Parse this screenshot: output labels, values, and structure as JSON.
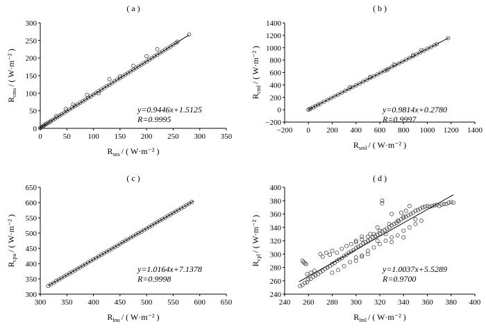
{
  "chart_data": [
    {
      "type": "scatter",
      "title": "( a )",
      "xlabel": {
        "main": "R",
        "sub": "sns",
        "unit": "/ ( W·m⁻² )"
      },
      "ylabel": {
        "main": "R",
        "sub": "cms",
        "unit": "/ ( W·m⁻² )"
      },
      "xlim": [
        0,
        350
      ],
      "ylim": [
        0,
        300
      ],
      "xticks": [
        "0",
        "50",
        "100",
        "150",
        "200",
        "250",
        "300",
        "350"
      ],
      "yticks": [
        "0",
        "50",
        "100",
        "150",
        "200",
        "250",
        "300"
      ],
      "equation": "y=0.9446x+1.5125",
      "r_text": "R=0.9995",
      "fit": {
        "slope": 0.9446,
        "intercept": 1.5125,
        "x_range": [
          0,
          280
        ]
      },
      "points": [
        [
          0,
          1
        ],
        [
          2,
          3
        ],
        [
          4,
          5
        ],
        [
          6,
          7
        ],
        [
          8,
          9
        ],
        [
          10,
          12
        ],
        [
          12,
          13
        ],
        [
          15,
          16
        ],
        [
          18,
          18
        ],
        [
          20,
          21
        ],
        [
          24,
          24
        ],
        [
          28,
          28
        ],
        [
          32,
          32
        ],
        [
          36,
          36
        ],
        [
          40,
          40
        ],
        [
          45,
          44
        ],
        [
          50,
          49
        ],
        [
          55,
          54
        ],
        [
          60,
          59
        ],
        [
          65,
          63
        ],
        [
          70,
          68
        ],
        [
          75,
          73
        ],
        [
          80,
          77
        ],
        [
          85,
          82
        ],
        [
          90,
          87
        ],
        [
          95,
          91
        ],
        [
          100,
          96
        ],
        [
          105,
          101
        ],
        [
          110,
          106
        ],
        [
          115,
          110
        ],
        [
          120,
          115
        ],
        [
          125,
          120
        ],
        [
          130,
          124
        ],
        [
          135,
          129
        ],
        [
          140,
          134
        ],
        [
          145,
          139
        ],
        [
          150,
          143
        ],
        [
          155,
          148
        ],
        [
          160,
          153
        ],
        [
          165,
          157
        ],
        [
          170,
          162
        ],
        [
          175,
          167
        ],
        [
          180,
          172
        ],
        [
          185,
          176
        ],
        [
          190,
          181
        ],
        [
          195,
          186
        ],
        [
          200,
          190
        ],
        [
          205,
          195
        ],
        [
          210,
          200
        ],
        [
          215,
          205
        ],
        [
          220,
          209
        ],
        [
          225,
          214
        ],
        [
          230,
          219
        ],
        [
          235,
          224
        ],
        [
          240,
          228
        ],
        [
          245,
          233
        ],
        [
          250,
          238
        ],
        [
          255,
          243
        ],
        [
          258,
          246
        ],
        [
          280,
          267
        ],
        [
          30,
          35
        ],
        [
          48,
          55
        ],
        [
          62,
          68
        ],
        [
          88,
          95
        ],
        [
          110,
          100
        ],
        [
          130,
          140
        ],
        [
          150,
          148
        ],
        [
          175,
          178
        ],
        [
          200,
          205
        ],
        [
          220,
          225
        ]
      ]
    },
    {
      "type": "scatter",
      "title": "( b )",
      "xlabel": {
        "main": "R",
        "sub": "sml",
        "unit": "/ ( W·m⁻² )"
      },
      "ylabel": {
        "main": "R",
        "sub": "cml",
        "unit": "/ ( W·m⁻² )"
      },
      "xlim": [
        -200,
        1400
      ],
      "ylim": [
        -200,
        1400
      ],
      "xticks": [
        "−200",
        "0",
        "200",
        "400",
        "600",
        "800",
        "1000",
        "1200",
        "1400"
      ],
      "yticks": [
        "−200",
        "0",
        "200",
        "400",
        "600",
        "800",
        "1000",
        "1200",
        "1400"
      ],
      "equation": "y=0.9814x+0.2780",
      "r_text": "R=0.9997",
      "fit": {
        "slope": 0.9814,
        "intercept": 0.278,
        "x_range": [
          0,
          1180
        ]
      },
      "points": [
        [
          0,
          0
        ],
        [
          10,
          10
        ],
        [
          20,
          19
        ],
        [
          40,
          39
        ],
        [
          60,
          59
        ],
        [
          80,
          79
        ],
        [
          100,
          98
        ],
        [
          130,
          128
        ],
        [
          160,
          157
        ],
        [
          190,
          187
        ],
        [
          220,
          216
        ],
        [
          250,
          246
        ],
        [
          280,
          275
        ],
        [
          310,
          305
        ],
        [
          340,
          334
        ],
        [
          370,
          364
        ],
        [
          400,
          393
        ],
        [
          430,
          422
        ],
        [
          460,
          452
        ],
        [
          490,
          481
        ],
        [
          520,
          511
        ],
        [
          550,
          540
        ],
        [
          580,
          570
        ],
        [
          610,
          599
        ],
        [
          640,
          628
        ],
        [
          670,
          658
        ],
        [
          700,
          687
        ],
        [
          730,
          717
        ],
        [
          760,
          746
        ],
        [
          790,
          776
        ],
        [
          820,
          805
        ],
        [
          850,
          835
        ],
        [
          880,
          864
        ],
        [
          910,
          893
        ],
        [
          940,
          923
        ],
        [
          970,
          952
        ],
        [
          1000,
          982
        ],
        [
          1030,
          1011
        ],
        [
          1060,
          1040
        ],
        [
          1080,
          1060
        ],
        [
          1175,
          1155
        ],
        [
          350,
          360
        ],
        [
          520,
          530
        ],
        [
          660,
          640
        ],
        [
          720,
          730
        ],
        [
          880,
          880
        ],
        [
          950,
          960
        ]
      ]
    },
    {
      "type": "scatter",
      "title": "( c )",
      "xlabel": {
        "main": "R",
        "sub": "lnu",
        "unit": "/ ( W·m⁻² )"
      },
      "ylabel": {
        "main": "R",
        "sub": "cpu",
        "unit": "/ ( W·m⁻² )"
      },
      "xlim": [
        300,
        650
      ],
      "ylim": [
        300,
        650
      ],
      "xticks": [
        "300",
        "350",
        "400",
        "450",
        "500",
        "550",
        "600",
        "650"
      ],
      "yticks": [
        "300",
        "350",
        "400",
        "450",
        "500",
        "550",
        "600",
        "650"
      ],
      "equation": "y=1.0164x+7.1378",
      "r_text": "R=0.9998",
      "fit": {
        "slope": 1.0164,
        "intercept": 7.1378,
        "x_range": [
          315,
          588
        ]
      },
      "points": [
        [
          315,
          327
        ],
        [
          320,
          332
        ],
        [
          325,
          337
        ],
        [
          330,
          343
        ],
        [
          335,
          348
        ],
        [
          340,
          353
        ],
        [
          345,
          358
        ],
        [
          350,
          363
        ],
        [
          355,
          368
        ],
        [
          360,
          373
        ],
        [
          365,
          378
        ],
        [
          370,
          383
        ],
        [
          375,
          388
        ],
        [
          380,
          393
        ],
        [
          385,
          398
        ],
        [
          390,
          404
        ],
        [
          395,
          409
        ],
        [
          400,
          414
        ],
        [
          405,
          419
        ],
        [
          410,
          424
        ],
        [
          415,
          429
        ],
        [
          420,
          434
        ],
        [
          425,
          439
        ],
        [
          430,
          444
        ],
        [
          435,
          449
        ],
        [
          440,
          454
        ],
        [
          445,
          459
        ],
        [
          450,
          465
        ],
        [
          455,
          470
        ],
        [
          460,
          475
        ],
        [
          465,
          480
        ],
        [
          470,
          485
        ],
        [
          475,
          490
        ],
        [
          480,
          495
        ],
        [
          485,
          500
        ],
        [
          490,
          505
        ],
        [
          495,
          510
        ],
        [
          500,
          515
        ],
        [
          505,
          520
        ],
        [
          510,
          525
        ],
        [
          515,
          531
        ],
        [
          520,
          536
        ],
        [
          525,
          541
        ],
        [
          530,
          546
        ],
        [
          535,
          551
        ],
        [
          540,
          556
        ],
        [
          545,
          561
        ],
        [
          550,
          566
        ],
        [
          555,
          571
        ],
        [
          560,
          576
        ],
        [
          565,
          581
        ],
        [
          570,
          586
        ],
        [
          575,
          592
        ],
        [
          580,
          597
        ],
        [
          585,
          602
        ]
      ]
    },
    {
      "type": "scatter",
      "title": "( d )",
      "xlabel": {
        "main": "R",
        "sub": "lml",
        "unit": "/ ( W·m⁻² )"
      },
      "ylabel": {
        "main": "R",
        "sub": "cpl",
        "unit": "/ ( W·m⁻² )"
      },
      "xlim": [
        240,
        400
      ],
      "ylim": [
        240,
        400
      ],
      "xticks": [
        "240",
        "260",
        "280",
        "300",
        "320",
        "340",
        "360",
        "380",
        "400"
      ],
      "yticks": [
        "240",
        "260",
        "280",
        "300",
        "320",
        "340",
        "360",
        "380",
        "400"
      ],
      "equation": "y=1.0037x+5.5289",
      "r_text": "R=0.9700",
      "fit": {
        "slope": 1.0037,
        "intercept": 5.5289,
        "x_range": [
          252,
          382
        ]
      },
      "points": [
        [
          253,
          252
        ],
        [
          255,
          254
        ],
        [
          257,
          257
        ],
        [
          259,
          258
        ],
        [
          260,
          262
        ],
        [
          262,
          263
        ],
        [
          264,
          266
        ],
        [
          266,
          268
        ],
        [
          268,
          270
        ],
        [
          270,
          273
        ],
        [
          272,
          275
        ],
        [
          274,
          278
        ],
        [
          276,
          280
        ],
        [
          278,
          282
        ],
        [
          280,
          285
        ],
        [
          282,
          287
        ],
        [
          284,
          290
        ],
        [
          286,
          292
        ],
        [
          288,
          294
        ],
        [
          290,
          297
        ],
        [
          292,
          299
        ],
        [
          294,
          302
        ],
        [
          296,
          304
        ],
        [
          298,
          306
        ],
        [
          300,
          309
        ],
        [
          302,
          311
        ],
        [
          304,
          313
        ],
        [
          306,
          316
        ],
        [
          308,
          318
        ],
        [
          310,
          320
        ],
        [
          312,
          322
        ],
        [
          314,
          325
        ],
        [
          316,
          327
        ],
        [
          318,
          329
        ],
        [
          320,
          331
        ],
        [
          322,
          334
        ],
        [
          324,
          336
        ],
        [
          326,
          338
        ],
        [
          328,
          340
        ],
        [
          330,
          343
        ],
        [
          332,
          345
        ],
        [
          334,
          347
        ],
        [
          336,
          349
        ],
        [
          338,
          352
        ],
        [
          340,
          354
        ],
        [
          342,
          356
        ],
        [
          344,
          358
        ],
        [
          346,
          360
        ],
        [
          348,
          362
        ],
        [
          350,
          365
        ],
        [
          352,
          366
        ],
        [
          354,
          368
        ],
        [
          356,
          370
        ],
        [
          358,
          371
        ],
        [
          360,
          372
        ],
        [
          362,
          371
        ],
        [
          364,
          372
        ],
        [
          366,
          373
        ],
        [
          368,
          374
        ],
        [
          370,
          372
        ],
        [
          372,
          374
        ],
        [
          374,
          375
        ],
        [
          376,
          375
        ],
        [
          378,
          377
        ],
        [
          380,
          378
        ],
        [
          382,
          377
        ],
        [
          255,
          290
        ],
        [
          256,
          288
        ],
        [
          257,
          286
        ],
        [
          258,
          285
        ],
        [
          259,
          270
        ],
        [
          262,
          272
        ],
        [
          265,
          275
        ],
        [
          270,
          300
        ],
        [
          272,
          296
        ],
        [
          275,
          302
        ],
        [
          278,
          299
        ],
        [
          280,
          305
        ],
        [
          284,
          302
        ],
        [
          288,
          308
        ],
        [
          292,
          312
        ],
        [
          296,
          315
        ],
        [
          300,
          318
        ],
        [
          305,
          322
        ],
        [
          310,
          326
        ],
        [
          315,
          330
        ],
        [
          320,
          335
        ],
        [
          322,
          380
        ],
        [
          322,
          376
        ],
        [
          330,
          360
        ],
        [
          335,
          350
        ],
        [
          340,
          356
        ],
        [
          345,
          372
        ],
        [
          350,
          352
        ],
        [
          300,
          295
        ],
        [
          305,
          298
        ],
        [
          310,
          305
        ],
        [
          315,
          310
        ],
        [
          320,
          315
        ],
        [
          325,
          320
        ],
        [
          330,
          325
        ],
        [
          335,
          328
        ],
        [
          340,
          335
        ],
        [
          345,
          340
        ],
        [
          350,
          345
        ],
        [
          355,
          350
        ],
        [
          280,
          272
        ],
        [
          285,
          276
        ],
        [
          290,
          282
        ],
        [
          295,
          288
        ],
        [
          300,
          290
        ],
        [
          305,
          296
        ],
        [
          310,
          300
        ],
        [
          318,
          320
        ],
        [
          325,
          330
        ],
        [
          330,
          318
        ],
        [
          340,
          325
        ],
        [
          300,
          320
        ],
        [
          305,
          326
        ],
        [
          312,
          330
        ],
        [
          318,
          340
        ],
        [
          328,
          345
        ],
        [
          338,
          362
        ],
        [
          342,
          365
        ]
      ]
    }
  ]
}
